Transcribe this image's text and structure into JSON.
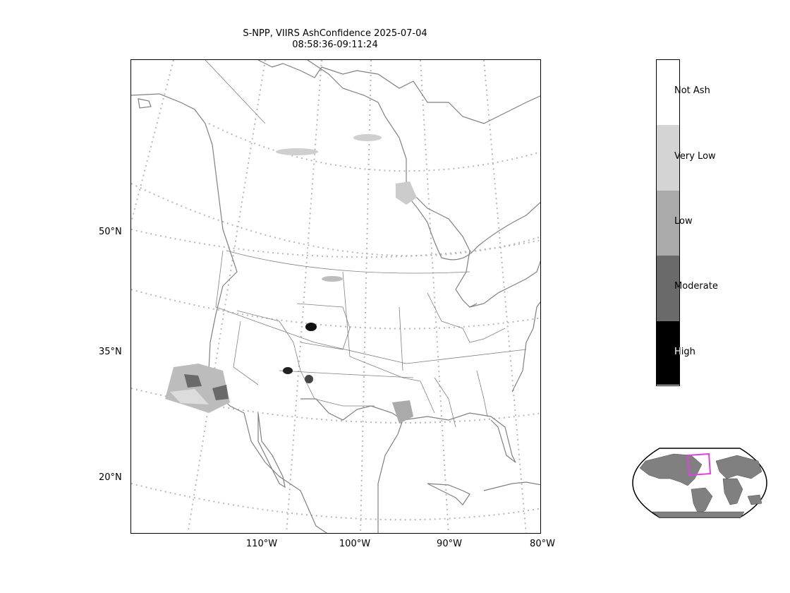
{
  "title": {
    "line1": "S-NPP, VIIRS AshConfidence 2025-07-04",
    "line2": "08:58:36-09:11:24"
  },
  "lat_labels": [
    "50°N",
    "35°N",
    "20°N"
  ],
  "lon_labels": [
    "110°W",
    "100°W",
    "90°W",
    "80°W"
  ],
  "colorbar": {
    "categories": [
      {
        "label": "Not Ash",
        "color": "#ffffff"
      },
      {
        "label": "Very Low",
        "color": "#d4d4d4"
      },
      {
        "label": "Low",
        "color": "#aaaaaa"
      },
      {
        "label": "Moderate",
        "color": "#6a6a6a"
      },
      {
        "label": "High",
        "color": "#000000"
      }
    ]
  },
  "colors": {
    "coastline": "#808080",
    "graticule": "#b8b8b8",
    "inset_land": "#808080",
    "inset_box": "#e040e0"
  }
}
